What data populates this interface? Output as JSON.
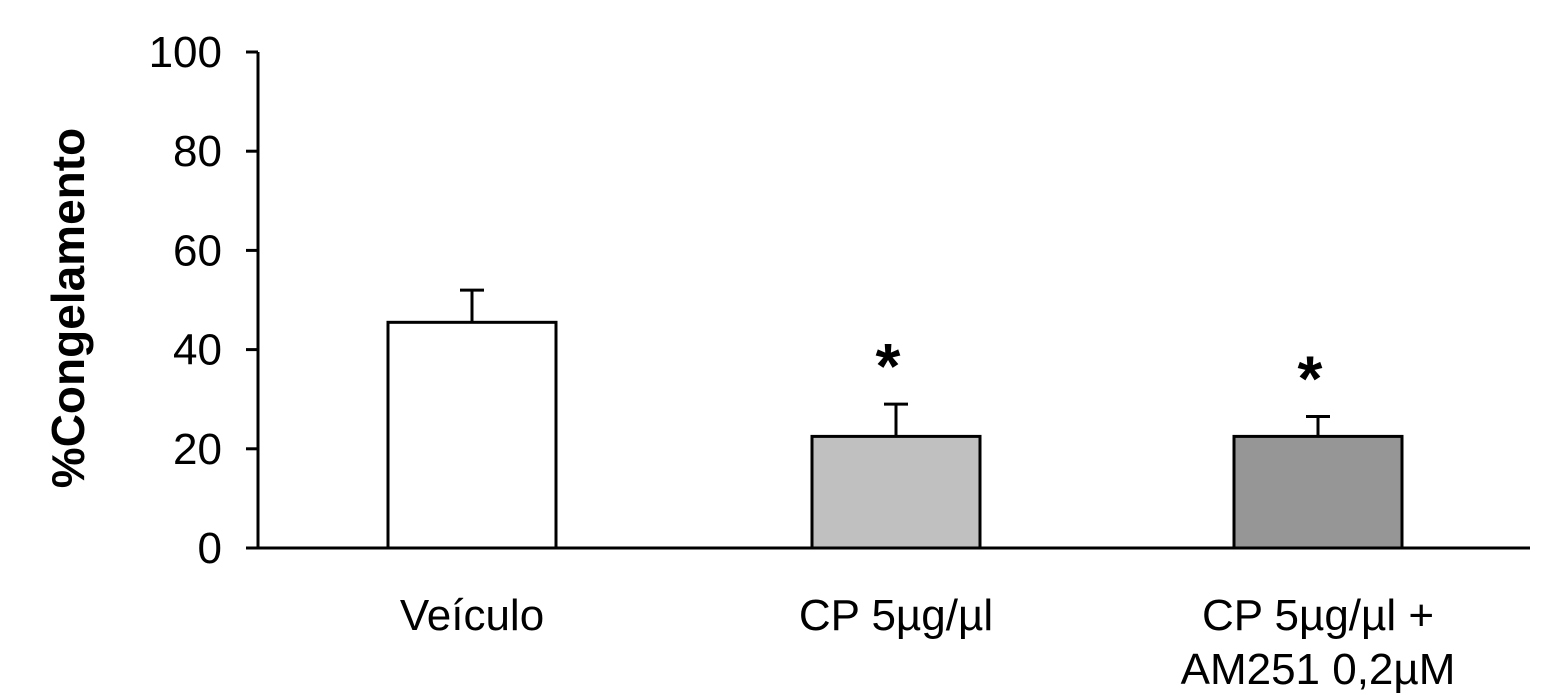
{
  "chart_data": {
    "type": "bar",
    "ylabel": "%Congelamento",
    "xlabel": "",
    "ylim": [
      0,
      100
    ],
    "yticks": [
      0,
      20,
      40,
      60,
      80,
      100
    ],
    "grid": false,
    "categories": [
      [
        "Veículo"
      ],
      [
        "CP 5µg/µl"
      ],
      [
        "CP 5µg/µl +",
        "AM251 0,2µM"
      ]
    ],
    "values": [
      45.5,
      22.5,
      22.5
    ],
    "errors": [
      6.5,
      6.5,
      4
    ],
    "colors": [
      "#ffffff",
      "#c0c0c0",
      "#969696"
    ],
    "annotations": [
      "",
      "*",
      "*"
    ]
  }
}
